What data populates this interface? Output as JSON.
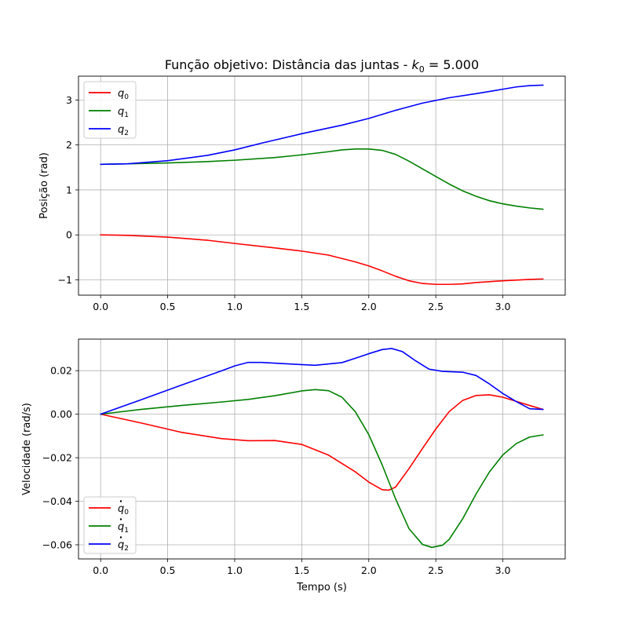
{
  "figure": {
    "title_text": "Função objetivo: Distância das juntas - ",
    "title_k_symbol": "k",
    "title_k_sub": "0",
    "title_k_value": " = 5.000"
  },
  "colors": {
    "q0": "#ff0000",
    "q1": "#008000",
    "q2": "#0000ff",
    "grid": "#b0b0b0"
  },
  "chart_data": [
    {
      "type": "line",
      "id": "position",
      "ylabel": "Posição (rad)",
      "xlabel": "",
      "xlim": [
        -0.165,
        3.465
      ],
      "ylim": [
        -1.34,
        3.53
      ],
      "xticks": [
        0.0,
        0.5,
        1.0,
        1.5,
        2.0,
        2.5,
        3.0
      ],
      "xtick_labels": [
        "0.0",
        "0.5",
        "1.0",
        "1.5",
        "2.0",
        "2.5",
        "3.0"
      ],
      "yticks": [
        -1,
        0,
        1,
        2,
        3
      ],
      "ytick_labels": [
        "−1",
        "0",
        "1",
        "2",
        "3"
      ],
      "grid": true,
      "legend_position": "upper-left",
      "series": [
        {
          "name_base": "q",
          "name_sub": "0",
          "dot": false,
          "color_key": "q0",
          "x": [
            0.0,
            0.2,
            0.5,
            0.8,
            1.0,
            1.3,
            1.5,
            1.7,
            1.9,
            2.0,
            2.1,
            2.2,
            2.3,
            2.4,
            2.5,
            2.6,
            2.7,
            2.8,
            3.0,
            3.2,
            3.3
          ],
          "y": [
            0.0,
            -0.01,
            -0.05,
            -0.12,
            -0.19,
            -0.29,
            -0.36,
            -0.45,
            -0.6,
            -0.69,
            -0.8,
            -0.92,
            -1.02,
            -1.08,
            -1.1,
            -1.1,
            -1.09,
            -1.06,
            -1.02,
            -0.99,
            -0.98
          ]
        },
        {
          "name_base": "q",
          "name_sub": "1",
          "dot": false,
          "color_key": "q1",
          "x": [
            0.0,
            0.2,
            0.5,
            0.8,
            1.0,
            1.3,
            1.5,
            1.7,
            1.8,
            1.9,
            2.0,
            2.1,
            2.2,
            2.3,
            2.4,
            2.5,
            2.6,
            2.7,
            2.8,
            2.9,
            3.0,
            3.1,
            3.2,
            3.3
          ],
          "y": [
            1.57,
            1.58,
            1.6,
            1.63,
            1.66,
            1.72,
            1.78,
            1.85,
            1.89,
            1.91,
            1.91,
            1.88,
            1.79,
            1.64,
            1.47,
            1.3,
            1.13,
            0.98,
            0.86,
            0.76,
            0.69,
            0.64,
            0.6,
            0.57
          ]
        },
        {
          "name_base": "q",
          "name_sub": "2",
          "dot": false,
          "color_key": "q2",
          "x": [
            0.0,
            0.2,
            0.5,
            0.8,
            1.0,
            1.2,
            1.5,
            1.8,
            2.0,
            2.2,
            2.4,
            2.6,
            2.8,
            3.0,
            3.1,
            3.2,
            3.3
          ],
          "y": [
            1.57,
            1.58,
            1.65,
            1.77,
            1.89,
            2.04,
            2.25,
            2.44,
            2.59,
            2.77,
            2.93,
            3.05,
            3.14,
            3.24,
            3.29,
            3.32,
            3.33
          ]
        }
      ]
    },
    {
      "type": "line",
      "id": "velocity",
      "ylabel": "Velocidade (rad/s)",
      "xlabel": "Tempo (s)",
      "xlim": [
        -0.165,
        3.465
      ],
      "ylim": [
        -0.0665,
        0.0345
      ],
      "xticks": [
        0.0,
        0.5,
        1.0,
        1.5,
        2.0,
        2.5,
        3.0
      ],
      "xtick_labels": [
        "0.0",
        "0.5",
        "1.0",
        "1.5",
        "2.0",
        "2.5",
        "3.0"
      ],
      "yticks": [
        -0.06,
        -0.04,
        -0.02,
        0.0,
        0.02
      ],
      "ytick_labels": [
        "−0.06",
        "−0.04",
        "−0.02",
        "0.00",
        "0.02"
      ],
      "grid": true,
      "legend_position": "lower-left",
      "series": [
        {
          "name_base": "q",
          "name_sub": "0",
          "dot": true,
          "color_key": "q0",
          "x": [
            0.0,
            0.3,
            0.6,
            0.9,
            1.1,
            1.3,
            1.5,
            1.7,
            1.9,
            2.0,
            2.1,
            2.15,
            2.2,
            2.3,
            2.4,
            2.5,
            2.6,
            2.7,
            2.8,
            2.9,
            3.0,
            3.1,
            3.2,
            3.3
          ],
          "y": [
            0.0,
            -0.004,
            -0.0083,
            -0.0112,
            -0.0122,
            -0.0121,
            -0.0139,
            -0.0188,
            -0.0265,
            -0.0312,
            -0.0347,
            -0.0349,
            -0.0335,
            -0.025,
            -0.0158,
            -0.0068,
            0.0012,
            0.0063,
            0.0086,
            0.0089,
            0.0078,
            0.0059,
            0.004,
            0.0022
          ]
        },
        {
          "name_base": "q",
          "name_sub": "1",
          "dot": true,
          "color_key": "q1",
          "x": [
            0.0,
            0.3,
            0.6,
            0.9,
            1.1,
            1.3,
            1.5,
            1.6,
            1.7,
            1.8,
            1.9,
            2.0,
            2.1,
            2.2,
            2.3,
            2.4,
            2.47,
            2.55,
            2.6,
            2.7,
            2.8,
            2.9,
            3.0,
            3.1,
            3.2,
            3.3
          ],
          "y": [
            0.0,
            0.0022,
            0.004,
            0.0056,
            0.0068,
            0.0085,
            0.0107,
            0.0113,
            0.0108,
            0.0078,
            0.0011,
            -0.0094,
            -0.0233,
            -0.0389,
            -0.0526,
            -0.0598,
            -0.0612,
            -0.0602,
            -0.0575,
            -0.0481,
            -0.0367,
            -0.0265,
            -0.0187,
            -0.0135,
            -0.0105,
            -0.0095
          ]
        },
        {
          "name_base": "q",
          "name_sub": "2",
          "dot": true,
          "color_key": "q2",
          "x": [
            0.0,
            0.3,
            0.6,
            0.9,
            1.0,
            1.1,
            1.2,
            1.4,
            1.6,
            1.8,
            1.9,
            2.0,
            2.1,
            2.17,
            2.25,
            2.35,
            2.45,
            2.55,
            2.7,
            2.8,
            2.9,
            3.0,
            3.1,
            3.2,
            3.3
          ],
          "y": [
            0.0,
            0.0066,
            0.0133,
            0.0199,
            0.0222,
            0.0238,
            0.0238,
            0.0231,
            0.0225,
            0.0237,
            0.0257,
            0.0278,
            0.0297,
            0.0302,
            0.0288,
            0.0245,
            0.0207,
            0.0197,
            0.0193,
            0.0178,
            0.0139,
            0.0095,
            0.0058,
            0.0025,
            0.0022
          ]
        }
      ]
    }
  ]
}
